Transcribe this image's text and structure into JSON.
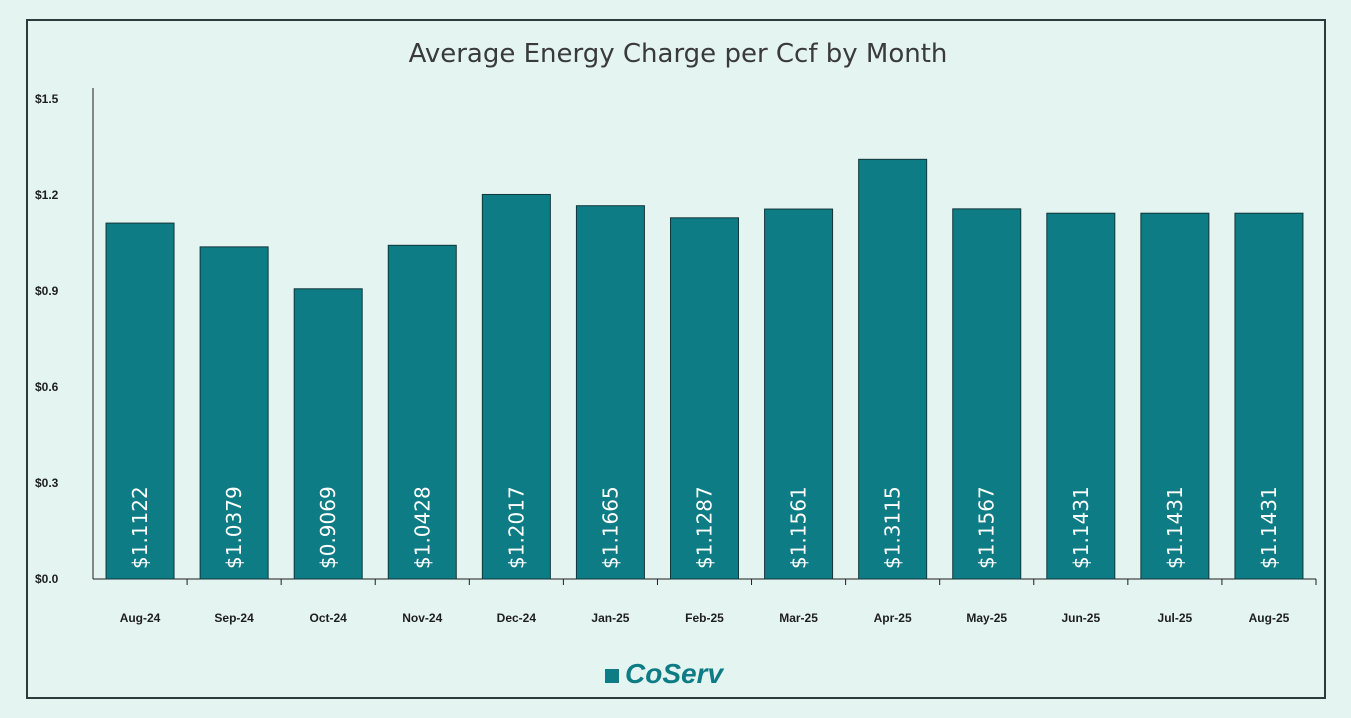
{
  "chart_data": {
    "type": "bar",
    "title": "Average Energy Charge per Ccf by Month",
    "xlabel": "",
    "ylabel": "",
    "ylim": [
      0,
      1.5
    ],
    "yticks": [
      "$0.0",
      "$0.3",
      "$0.6",
      "$0.9",
      "$1.2",
      "$1.5"
    ],
    "ytick_values": [
      0,
      0.3,
      0.6,
      0.9,
      1.2,
      1.5
    ],
    "categories": [
      "Aug-24",
      "Sep-24",
      "Oct-24",
      "Nov-24",
      "Dec-24",
      "Jan-25",
      "Feb-25",
      "Mar-25",
      "Apr-25",
      "May-25",
      "Jun-25",
      "Jul-25",
      "Aug-25"
    ],
    "values": [
      1.1122,
      1.0379,
      0.9069,
      1.0428,
      1.2017,
      1.1665,
      1.1287,
      1.1561,
      1.3115,
      1.1567,
      1.1431,
      1.1431,
      1.1431
    ],
    "labels": [
      "$1.1122",
      "$1.0379",
      "$0.9069",
      "$1.0428",
      "$1.2017",
      "$1.1665",
      "$1.1287",
      "$1.1561",
      "$1.3115",
      "$1.1567",
      "$1.1431",
      "$1.1431",
      "$1.1431"
    ]
  },
  "colors": {
    "bar": "#0e7c85",
    "background": "#e4f4f0"
  },
  "branding": {
    "logo_text": "CoServ",
    "logo_icon": "square-icon"
  }
}
